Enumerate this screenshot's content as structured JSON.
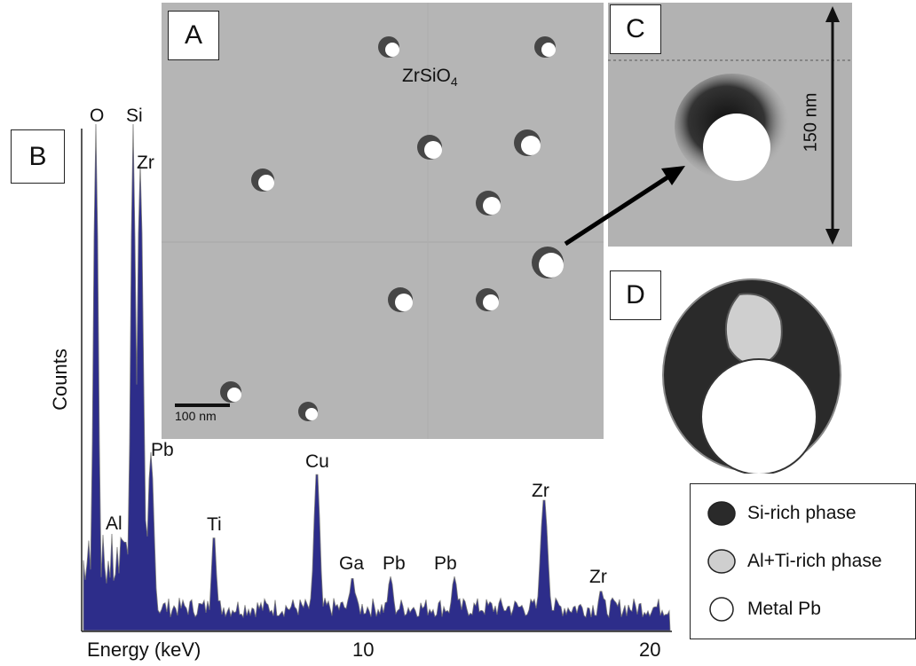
{
  "panels": {
    "a": "A",
    "b": "B",
    "c": "C",
    "d": "D"
  },
  "micrograph": {
    "material": "ZrSiO",
    "material_sub": "4",
    "scale_bar": "100 nm"
  },
  "detail": {
    "scale": "150 nm"
  },
  "spectrum": {
    "ylabel": "Counts",
    "xlabel": "Energy (keV)",
    "x_ticks": [
      "10",
      "20"
    ],
    "peak_labels": {
      "o": "O",
      "si": "Si",
      "zr1": "Zr",
      "pb1": "Pb",
      "al": "Al",
      "ti": "Ti",
      "cu": "Cu",
      "ga": "Ga",
      "pb2": "Pb",
      "pb3": "Pb",
      "zr2": "Zr",
      "zr3": "Zr"
    },
    "bar_color": "#2d2d8a"
  },
  "legend": [
    {
      "label": "Si-rich phase",
      "color": "#2a2a2a"
    },
    {
      "label": "Al+Ti-rich phase",
      "color": "#cfcfcf"
    },
    {
      "label": "Metal Pb",
      "color": "#ffffff"
    }
  ]
}
